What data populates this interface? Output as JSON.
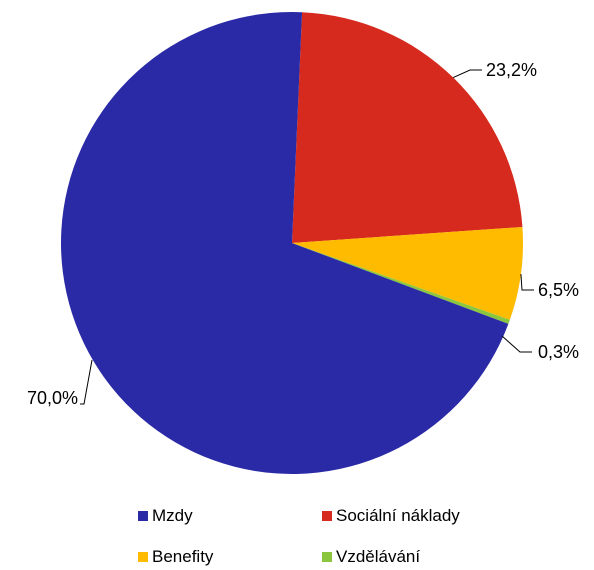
{
  "chart_data": {
    "type": "pie",
    "title": "",
    "slices": [
      {
        "label": "Mzdy",
        "value": 70.0,
        "value_label": "70,0%",
        "color": "#2a2aa6"
      },
      {
        "label": "Sociální náklady",
        "value": 23.2,
        "value_label": "23,2%",
        "color": "#d62a1e"
      },
      {
        "label": "Benefity",
        "value": 6.5,
        "value_label": "6,5%",
        "color": "#ffbb00"
      },
      {
        "label": "Vzdělávání",
        "value": 0.3,
        "value_label": "0,3%",
        "color": "#8cc63f"
      }
    ],
    "legend_position": "bottom"
  }
}
